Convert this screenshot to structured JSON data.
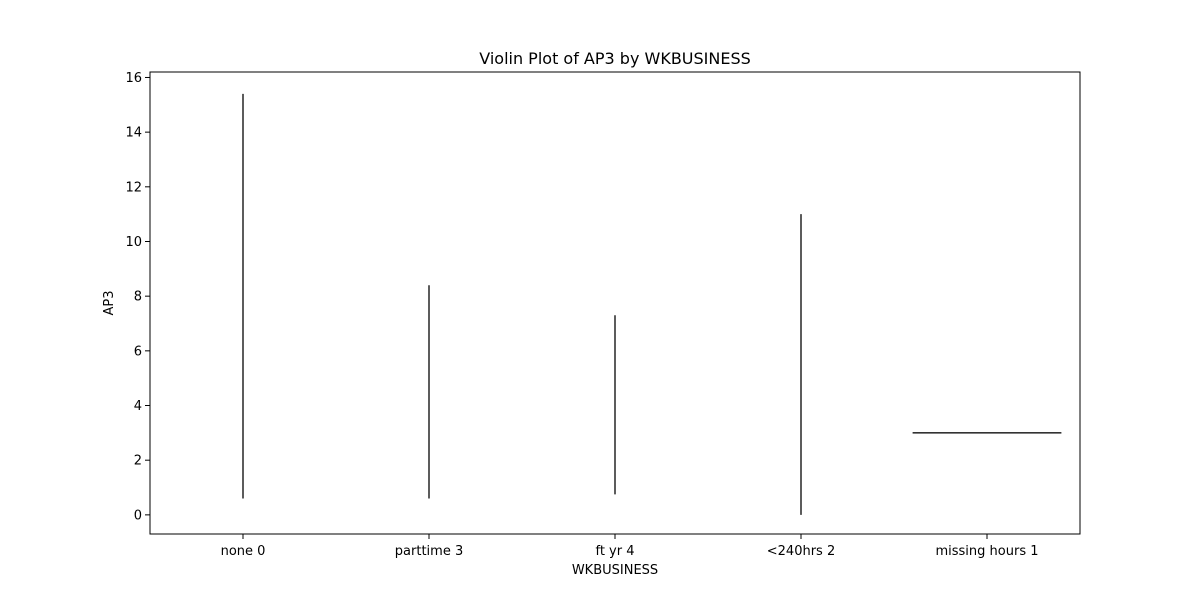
{
  "chart_data": {
    "type": "violin",
    "title": "Violin Plot of AP3 by WKBUSINESS",
    "xlabel": "WKBUSINESS",
    "ylabel": "AP3",
    "categories": [
      "none 0",
      "parttime 3",
      "ft yr 4",
      "<240hrs 2",
      "missing hours 1"
    ],
    "ylim": [
      -0.7,
      16.2
    ],
    "yticks": [
      0,
      2,
      4,
      6,
      8,
      10,
      12,
      14,
      16
    ],
    "series": [
      {
        "category": "none 0",
        "min": 0.6,
        "max": 15.4
      },
      {
        "category": "parttime 3",
        "min": 0.6,
        "max": 8.4
      },
      {
        "category": "ft yr 4",
        "min": 0.75,
        "max": 7.3
      },
      {
        "category": "<240hrs 2",
        "min": 0.0,
        "max": 11.0
      },
      {
        "category": "missing hours 1",
        "min": 3.0,
        "max": 3.0
      }
    ],
    "grid": false,
    "line_color": "#333333"
  }
}
